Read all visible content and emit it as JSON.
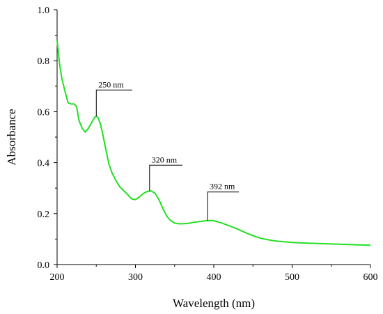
{
  "chart_data": {
    "type": "line",
    "title": "",
    "xlabel": "Wavelength (nm)",
    "ylabel": "Absorbance",
    "xlim": [
      200,
      600
    ],
    "ylim": [
      0.0,
      1.0
    ],
    "xticks": [
      200,
      300,
      400,
      500,
      600
    ],
    "yticks": [
      0.0,
      0.2,
      0.4,
      0.6,
      0.8,
      1.0
    ],
    "xtick_labels": [
      "200",
      "300",
      "400",
      "500",
      "600"
    ],
    "ytick_labels": [
      "0.0",
      "0.2",
      "0.4",
      "0.6",
      "0.8",
      "1.0"
    ],
    "grid": false,
    "series": [
      {
        "color": "#22e022",
        "x": [
          200,
          203,
          206,
          210,
          214,
          218,
          222,
          225,
          228,
          232,
          236,
          240,
          244,
          248,
          250,
          252,
          255,
          258,
          262,
          266,
          270,
          275,
          280,
          285,
          290,
          295,
          300,
          305,
          310,
          315,
          320,
          325,
          330,
          335,
          340,
          345,
          350,
          355,
          360,
          365,
          370,
          375,
          380,
          385,
          390,
          395,
          400,
          410,
          420,
          430,
          440,
          450,
          460,
          470,
          480,
          500,
          520,
          540,
          560,
          580,
          600
        ],
        "y": [
          0.88,
          0.79,
          0.73,
          0.68,
          0.635,
          0.63,
          0.63,
          0.618,
          0.565,
          0.535,
          0.52,
          0.535,
          0.557,
          0.578,
          0.582,
          0.578,
          0.555,
          0.515,
          0.455,
          0.395,
          0.36,
          0.33,
          0.305,
          0.29,
          0.275,
          0.258,
          0.255,
          0.265,
          0.279,
          0.287,
          0.289,
          0.28,
          0.255,
          0.22,
          0.19,
          0.172,
          0.163,
          0.16,
          0.16,
          0.161,
          0.163,
          0.166,
          0.168,
          0.17,
          0.172,
          0.173,
          0.172,
          0.163,
          0.152,
          0.14,
          0.126,
          0.113,
          0.103,
          0.097,
          0.092,
          0.087,
          0.084,
          0.082,
          0.08,
          0.078,
          0.076
        ]
      }
    ],
    "annotations": [
      {
        "label": "250 nm",
        "x": 250,
        "y": 0.582,
        "line_top": 0.685,
        "label_end_x": 296
      },
      {
        "label": "320 nm",
        "x": 318,
        "y": 0.289,
        "line_top": 0.39,
        "label_end_x": 360
      },
      {
        "label": "392 nm",
        "x": 392,
        "y": 0.173,
        "line_top": 0.285,
        "label_end_x": 432
      }
    ]
  }
}
